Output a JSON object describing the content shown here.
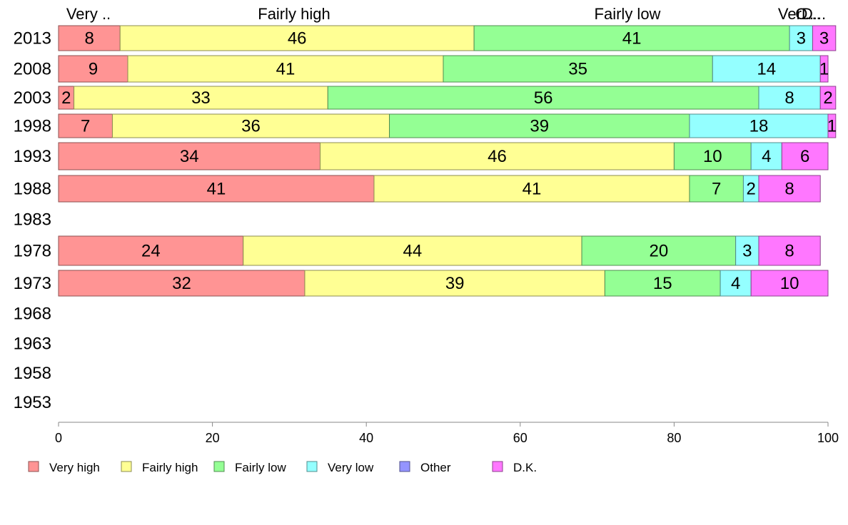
{
  "chart_data": {
    "type": "bar",
    "orientation": "horizontal",
    "stacked": true,
    "xlim": [
      0,
      100
    ],
    "x_ticks": [
      "0",
      "20",
      "40",
      "60",
      "80",
      "100"
    ],
    "categories": [
      "2013",
      "2008",
      "2003",
      "1998",
      "1993",
      "1988",
      "1983",
      "1978",
      "1973",
      "1968",
      "1963",
      "1958",
      "1953"
    ],
    "series": [
      {
        "name": "Very high",
        "color": "#ff9494",
        "values": [
          8,
          9,
          2,
          7,
          34,
          41,
          null,
          24,
          32,
          null,
          null,
          null,
          null
        ]
      },
      {
        "name": "Fairly high",
        "color": "#ffff94",
        "values": [
          46,
          41,
          33,
          36,
          46,
          41,
          null,
          44,
          39,
          null,
          null,
          null,
          null
        ]
      },
      {
        "name": "Fairly low",
        "color": "#94ff94",
        "values": [
          41,
          35,
          56,
          39,
          10,
          7,
          null,
          20,
          15,
          null,
          null,
          null,
          null
        ]
      },
      {
        "name": "Very low",
        "color": "#94ffff",
        "values": [
          3,
          14,
          8,
          18,
          4,
          2,
          null,
          3,
          4,
          null,
          null,
          null,
          null
        ]
      },
      {
        "name": "Other",
        "color": "#9494ff",
        "values": [
          0,
          0,
          0,
          0,
          0,
          0,
          null,
          0,
          0,
          null,
          null,
          null,
          null
        ]
      },
      {
        "name": "D.K.",
        "color": "#ff77ff",
        "values": [
          3,
          1,
          2,
          1,
          6,
          8,
          null,
          8,
          10,
          null,
          null,
          null,
          null
        ]
      }
    ],
    "top_labels": [
      "Very ..",
      "Fairly high",
      "Fairly low",
      "Ver...",
      "O...",
      "D..."
    ],
    "legend": [
      "Very high",
      "Fairly high",
      "Fairly low",
      "Very low",
      "Other",
      "D.K."
    ],
    "legend_position": "bottom",
    "grid": false
  }
}
